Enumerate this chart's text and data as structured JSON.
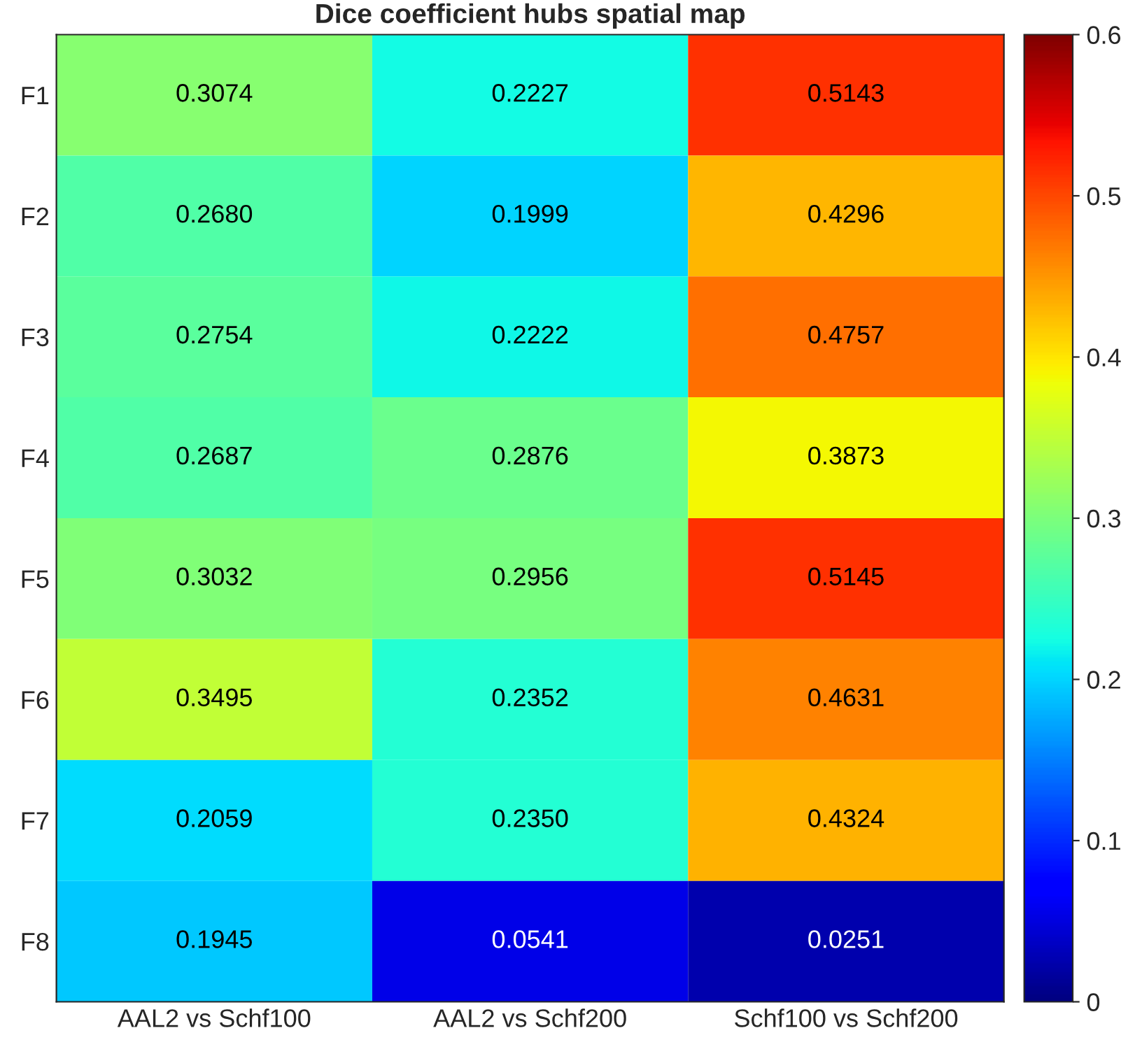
{
  "chart_data": {
    "type": "heatmap",
    "title": "Dice coefficient hubs spatial map",
    "categories": [
      "AAL2 vs Schf100",
      "AAL2 vs Schf200",
      "Schf100 vs Schf200"
    ],
    "y_categories": [
      "F1",
      "F2",
      "F3",
      "F4",
      "F5",
      "F6",
      "F7",
      "F8"
    ],
    "cells": [
      [
        0.3074,
        0.2227,
        0.5143
      ],
      [
        0.268,
        0.1999,
        0.4296
      ],
      [
        0.2754,
        0.2222,
        0.4757
      ],
      [
        0.2687,
        0.2876,
        0.3873
      ],
      [
        0.3032,
        0.2956,
        0.5145
      ],
      [
        0.3495,
        0.2352,
        0.4631
      ],
      [
        0.2059,
        0.235,
        0.4324
      ],
      [
        0.1945,
        0.0541,
        0.0251
      ]
    ],
    "cell_labels": [
      [
        "0.3074",
        "0.2227",
        "0.5143"
      ],
      [
        "0.2680",
        "0.1999",
        "0.4296"
      ],
      [
        "0.2754",
        "0.2222",
        "0.4757"
      ],
      [
        "0.2687",
        "0.2876",
        "0.3873"
      ],
      [
        "0.3032",
        "0.2956",
        "0.5145"
      ],
      [
        "0.3495",
        "0.2352",
        "0.4631"
      ],
      [
        "0.2059",
        "0.2350",
        "0.4324"
      ],
      [
        "0.1945",
        "0.0541",
        "0.0251"
      ]
    ],
    "clim": [
      0,
      0.6
    ],
    "cticks": [
      0,
      0.1,
      0.2,
      0.3,
      0.4,
      0.5,
      0.6
    ]
  }
}
